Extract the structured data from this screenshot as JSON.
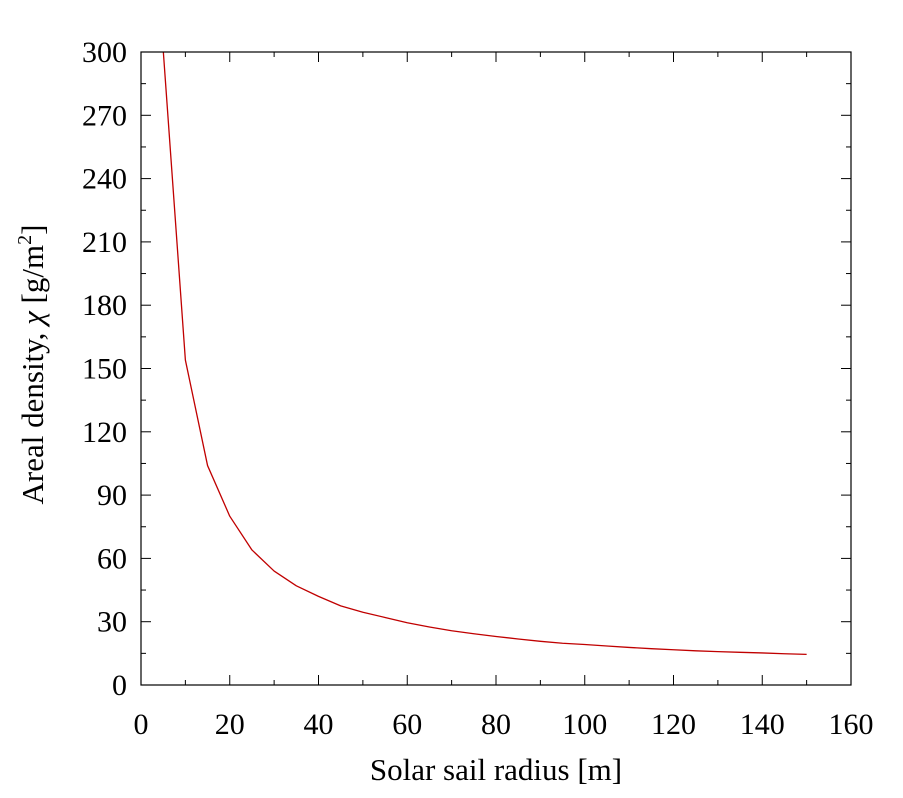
{
  "chart_data": {
    "type": "line",
    "title": "",
    "xlabel": "Solar sail radius [m]",
    "ylabel": {
      "text": "Areal density, ",
      "symbol": "χ",
      "unit_prefix": " [g/m",
      "unit_sup": "2",
      "unit_suffix": "]"
    },
    "xlim": [
      0,
      160
    ],
    "ylim": [
      0,
      300
    ],
    "xticks": [
      0,
      20,
      40,
      60,
      80,
      100,
      120,
      140,
      160
    ],
    "yticks": [
      0,
      30,
      60,
      90,
      120,
      150,
      180,
      210,
      240,
      270,
      300
    ],
    "xtick_labels": [
      "0",
      "20",
      "40",
      "60",
      "80",
      "100",
      "120",
      "140",
      "160"
    ],
    "ytick_labels": [
      "0",
      "30",
      "60",
      "90",
      "120",
      "150",
      "180",
      "210",
      "240",
      "270",
      "300"
    ],
    "grid": false,
    "series": [
      {
        "color": "#c00000",
        "x": [
          5,
          10,
          15,
          20,
          25,
          30,
          35,
          40,
          45,
          50,
          55,
          60,
          65,
          70,
          75,
          80,
          85,
          90,
          95,
          100,
          105,
          110,
          115,
          120,
          125,
          130,
          135,
          140,
          145,
          150
        ],
        "y": [
          301,
          154,
          104,
          80,
          64,
          54,
          47,
          42,
          37.5,
          34.5,
          32,
          29.5,
          27.5,
          25.7,
          24.3,
          23,
          21.8,
          20.7,
          19.8,
          19.2,
          18.5,
          17.8,
          17.2,
          16.7,
          16.2,
          15.8,
          15.5,
          15.2,
          14.8,
          14.5
        ]
      }
    ]
  }
}
